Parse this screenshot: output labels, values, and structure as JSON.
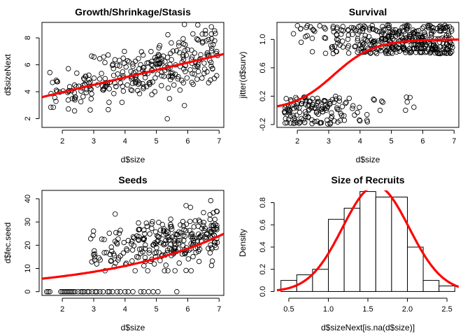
{
  "chart_data": [
    {
      "type": "scatter",
      "title": "Growth/Shrinkage/Stasis",
      "xlabel": "d$size",
      "ylabel": "d$sizeNext",
      "xlim": [
        1.35,
        7.15
      ],
      "ylim": [
        1.35,
        9.15
      ],
      "xticks": [
        2,
        3,
        4,
        5,
        6,
        7
      ],
      "yticks": [
        2,
        4,
        6,
        8
      ],
      "points": {
        "n": 300,
        "x_min": 1.5,
        "x_max": 6.95,
        "intercept": 2.85,
        "slope": 0.56,
        "noise": 0.9
      },
      "fit_line": {
        "x": [
          1.35,
          7.15
        ],
        "y": [
          3.6,
          6.8
        ],
        "color": "#ff0000"
      }
    },
    {
      "type": "scatter",
      "title": "Survival",
      "xlabel": "d$size",
      "ylabel": "jitter(d$surv)",
      "xlim": [
        1.35,
        7.15
      ],
      "ylim": [
        -0.24,
        1.24
      ],
      "xticks": [
        2,
        3,
        4,
        5,
        6,
        7
      ],
      "yticks": [
        -0.2,
        0.2,
        0.6,
        1.0
      ],
      "ytick_labels": [
        "-0.2",
        "0.2",
        "0.6",
        "1.0"
      ],
      "points": {
        "n": 520,
        "x_min": 1.5,
        "x_max": 6.95,
        "jitter": 0.2
      },
      "fit_curve": {
        "type": "logistic",
        "intercept": -4.9,
        "slope": 1.55,
        "color": "#ff0000"
      }
    },
    {
      "type": "scatter",
      "title": "Seeds",
      "xlabel": "d$size",
      "ylabel": "d$fec.seed",
      "xlim": [
        1.35,
        7.15
      ],
      "ylim": [
        -1.6,
        43.6
      ],
      "xticks": [
        2,
        3,
        4,
        5,
        6,
        7
      ],
      "yticks": [
        0,
        10,
        20,
        30,
        40
      ],
      "zero_points_x": [
        1.5,
        1.55,
        1.6,
        1.95,
        2.0,
        2.05,
        2.1,
        2.15,
        2.2,
        2.25,
        2.3,
        2.35,
        2.4,
        2.5,
        2.6,
        2.65,
        2.7,
        2.8,
        2.85,
        2.95,
        3.05,
        3.1,
        3.2,
        3.3,
        3.45,
        3.5,
        3.6,
        3.75,
        3.85,
        4.0,
        4.1,
        4.25,
        4.5,
        4.6,
        4.75,
        4.9,
        5.05,
        5.65
      ],
      "points": {
        "n": 270,
        "x_min": 2.85,
        "x_max": 6.95,
        "fec_at_3": 16.5,
        "fec_slope": 2.2,
        "noise": 5.5
      },
      "fit_curve": {
        "type": "exponential",
        "a": 5.6,
        "b": 0.2573,
        "x0": 1.35,
        "color": "#ff0000"
      }
    },
    {
      "type": "bar",
      "title": "Size of Recruits",
      "xlabel": "d$sizeNext[is.na(d$size)]",
      "ylabel": "Density",
      "xlim": [
        0.35,
        2.65
      ],
      "ylim": [
        -0.035,
        0.91
      ],
      "xticks": [
        0.5,
        1.0,
        1.5,
        2.0,
        2.5
      ],
      "xtick_labels": [
        "0.5",
        "1.0",
        "1.5",
        "2.0",
        "2.5"
      ],
      "yticks": [
        0.0,
        0.2,
        0.4,
        0.6,
        0.8
      ],
      "ytick_labels": [
        "0.0",
        "0.2",
        "0.4",
        "0.6",
        "0.8"
      ],
      "bin_edges": [
        0.4,
        0.6,
        0.8,
        1.0,
        1.2,
        1.4,
        1.6,
        1.8,
        2.0,
        2.2,
        2.4,
        2.6
      ],
      "densities": [
        0.1,
        0.15,
        0.2,
        0.65,
        0.75,
        0.9,
        0.85,
        0.85,
        0.4,
        0.1,
        0.05
      ],
      "normal_curve": {
        "mean": 1.6,
        "sd": 0.42,
        "color": "#ff0000"
      }
    }
  ]
}
